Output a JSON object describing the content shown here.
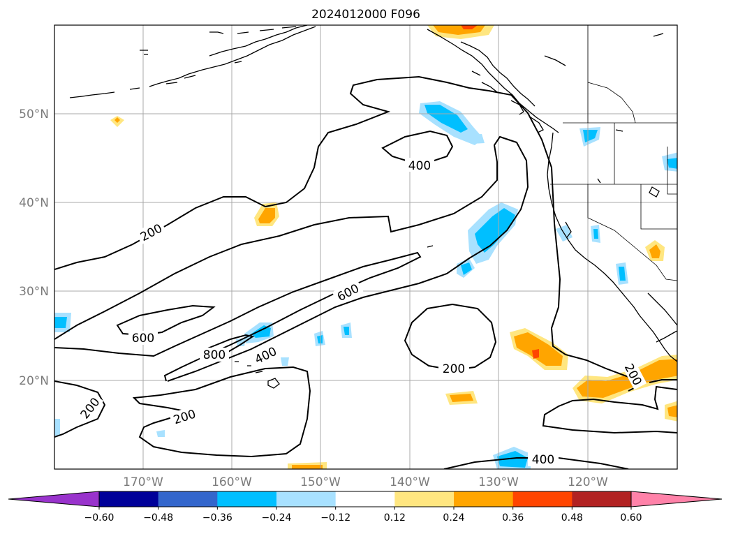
{
  "title": "2024012000 F096",
  "lat_labels": [
    "50°N",
    "40°N",
    "30°N",
    "20°N"
  ],
  "lon_labels": [
    "170°W",
    "160°W",
    "150°W",
    "140°W",
    "130°W",
    "120°W"
  ],
  "contour_labels": [
    "400",
    "200",
    "600",
    "600",
    "800",
    "400",
    "200",
    "200",
    "200",
    "200",
    "400"
  ],
  "colorbar": {
    "ticks": [
      "−0.60",
      "−0.48",
      "−0.36",
      "−0.24",
      "−0.12",
      "0.12",
      "0.24",
      "0.36",
      "0.48",
      "0.60"
    ],
    "colors": [
      "#9933cc",
      "#000099",
      "#3366cc",
      "#00bfff",
      "#a8e1ff",
      "#ffffff",
      "#ffe680",
      "#ffa500",
      "#ff4500",
      "#b22222",
      "#ff82a9"
    ]
  },
  "shading_colors": {
    "light_blue": "#a8e1ff",
    "blue": "#00bfff",
    "yellow": "#ffe680",
    "orange": "#ffa500",
    "red_orange": "#ff4500"
  }
}
